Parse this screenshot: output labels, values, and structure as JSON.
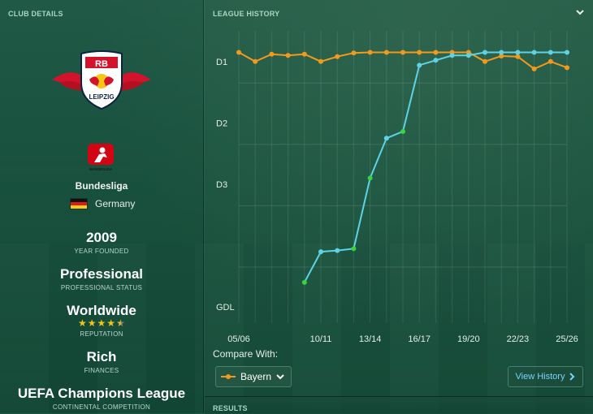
{
  "club_details": {
    "title": "CLUB DETAILS",
    "club_logo_text": "RB",
    "club_logo_bottom": "LEIPZIG",
    "league_logo_text": "BUNDESLIGA",
    "league": "Bundesliga",
    "country": "Germany",
    "founded": "2009",
    "founded_label": "YEAR FOUNDED",
    "status": "Professional",
    "status_label": "PROFESSIONAL STATUS",
    "reputation": "Worldwide",
    "reputation_stars": 4.5,
    "reputation_label": "REPUTATION",
    "finances": "Rich",
    "finances_label": "FINANCES",
    "continental": "UEFA Champions League",
    "continental_label": "CONTINENTAL COMPETITION"
  },
  "league_history": {
    "title": "LEAGUE HISTORY",
    "compare_label": "Compare With:",
    "compare_value": "Bayern",
    "view_history_label": "View History",
    "results_title": "RESULTS"
  },
  "colors": {
    "club_series": "#5fd3e6",
    "compare_series": "#f39a1c",
    "promotion_point": "#39d33b",
    "accent_link": "#79d0ff"
  },
  "chart_data": {
    "type": "line",
    "xlabel": "",
    "ylabel": "",
    "x_ticks": [
      "05/06",
      "10/11",
      "13/14",
      "16/17",
      "19/20",
      "22/23",
      "25/26"
    ],
    "y_ticks": [
      "D1",
      "D2",
      "D3",
      "GDL"
    ],
    "seasons": [
      "05/06",
      "06/07",
      "07/08",
      "08/09",
      "09/10",
      "10/11",
      "11/12",
      "12/13",
      "13/14",
      "14/15",
      "15/16",
      "16/17",
      "17/18",
      "18/19",
      "19/20",
      "20/21",
      "21/22",
      "22/23",
      "23/24",
      "24/25",
      "25/26"
    ],
    "series": [
      {
        "name": "RB Leipzig",
        "values": [
          null,
          null,
          null,
          null,
          5.1,
          4.6,
          4.58,
          4.55,
          3.4,
          2.75,
          2.64,
          1.56,
          1.48,
          1.4,
          1.4,
          1.35,
          1.35,
          1.35,
          1.35,
          1.35,
          1.35
        ],
        "promotion_seasons": [
          "09/10",
          "12/13",
          "13/14",
          "15/16"
        ]
      },
      {
        "name": "Bayern",
        "values": [
          1.35,
          1.5,
          1.38,
          1.4,
          1.38,
          1.5,
          1.42,
          1.36,
          1.35,
          1.35,
          1.35,
          1.35,
          1.35,
          1.35,
          1.35,
          1.5,
          1.41,
          1.42,
          1.62,
          1.5,
          1.6
        ]
      }
    ]
  }
}
